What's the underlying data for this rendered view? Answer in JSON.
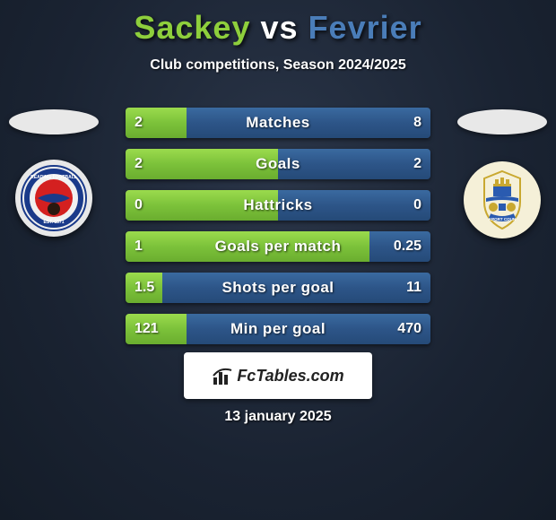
{
  "title": {
    "player1": "Sackey",
    "vs": "vs",
    "player2": "Fevrier",
    "player1_color": "#8ecf3c",
    "vs_color": "#ffffff",
    "player2_color": "#4a7db8"
  },
  "subtitle": "Club competitions, Season 2024/2025",
  "background_color": "#1a2332",
  "stats": [
    {
      "label": "Matches",
      "left_val": "2",
      "right_val": "8",
      "left_pct": 20
    },
    {
      "label": "Goals",
      "left_val": "2",
      "right_val": "2",
      "left_pct": 50
    },
    {
      "label": "Hattricks",
      "left_val": "0",
      "right_val": "0",
      "left_pct": 50
    },
    {
      "label": "Goals per match",
      "left_val": "1",
      "right_val": "0.25",
      "left_pct": 80
    },
    {
      "label": "Shots per goal",
      "left_val": "1.5",
      "right_val": "11",
      "left_pct": 12
    },
    {
      "label": "Min per goal",
      "left_val": "121",
      "right_val": "470",
      "left_pct": 20
    }
  ],
  "bar_left_color": "#7cc23a",
  "bar_right_color": "#2d5588",
  "footer_brand": "FcTables.com",
  "footer_date": "13 january 2025",
  "badges": {
    "left_name": "reading-fc-badge",
    "right_name": "stockport-county-badge"
  }
}
